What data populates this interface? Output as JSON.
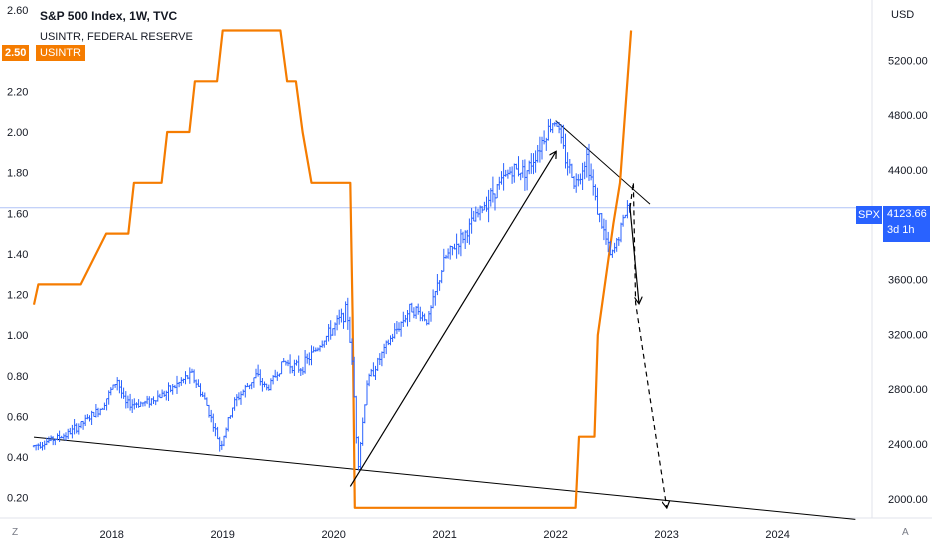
{
  "header": {
    "title": "S&P 500 Index, 1W, TVC",
    "subtitle": "USINTR, FEDERAL RESERVE",
    "usintr_tag_value": "2.50",
    "usintr_tag_name": "USINTR",
    "currency": "USD",
    "spx_symbol": "SPX",
    "spx_price": "4123.66",
    "spx_countdown": "3d 1h",
    "corner_left": "Z",
    "corner_right": "A"
  },
  "colors": {
    "spx": "#2962ff",
    "usintr": "#f57c00",
    "price_line": "#b0c4f7",
    "annotation": "#000000",
    "axis_text": "#131722"
  },
  "chart_data": {
    "type": "line",
    "title": "S&P 500 Index, 1W, TVC",
    "x_ticks": [
      "2018",
      "2019",
      "2020",
      "2021",
      "2022",
      "2023",
      "2024"
    ],
    "x_range": [
      2017.3,
      2024.85
    ],
    "left_axis": {
      "series": "USINTR",
      "ticks": [
        "0.20",
        "0.40",
        "0.60",
        "0.80",
        "1.00",
        "1.20",
        "1.40",
        "1.60",
        "1.80",
        "2.00",
        "2.20",
        "2.40",
        "2.60"
      ],
      "range": [
        0.1,
        2.65
      ]
    },
    "right_axis": {
      "series": "SPX",
      "ticks": [
        "2000.00",
        "2400.00",
        "2800.00",
        "3200.00",
        "3600.00",
        "4000.00",
        "4400.00",
        "4800.00",
        "5200.00"
      ],
      "range": [
        1860,
        5640
      ]
    },
    "series": [
      {
        "name": "USINTR",
        "axis": "left",
        "points": [
          [
            2017.3,
            1.15
          ],
          [
            2017.34,
            1.25
          ],
          [
            2017.72,
            1.25
          ],
          [
            2017.95,
            1.5
          ],
          [
            2018.15,
            1.5
          ],
          [
            2018.2,
            1.75
          ],
          [
            2018.45,
            1.75
          ],
          [
            2018.5,
            2.0
          ],
          [
            2018.7,
            2.0
          ],
          [
            2018.75,
            2.25
          ],
          [
            2018.95,
            2.25
          ],
          [
            2019.0,
            2.5
          ],
          [
            2019.52,
            2.5
          ],
          [
            2019.58,
            2.25
          ],
          [
            2019.66,
            2.25
          ],
          [
            2019.72,
            2.0
          ],
          [
            2019.8,
            1.75
          ],
          [
            2020.15,
            1.75
          ],
          [
            2020.17,
            1.1
          ],
          [
            2020.19,
            0.15
          ],
          [
            2022.18,
            0.15
          ],
          [
            2022.21,
            0.5
          ],
          [
            2022.35,
            0.5
          ],
          [
            2022.38,
            1.0
          ],
          [
            2022.52,
            1.55
          ],
          [
            2022.58,
            1.75
          ],
          [
            2022.68,
            2.5
          ]
        ]
      },
      {
        "name": "SPX",
        "axis": "right",
        "points": [
          [
            2017.3,
            2385
          ],
          [
            2017.45,
            2430
          ],
          [
            2017.6,
            2470
          ],
          [
            2017.75,
            2560
          ],
          [
            2017.9,
            2660
          ],
          [
            2018.05,
            2870
          ],
          [
            2018.12,
            2690
          ],
          [
            2018.3,
            2700
          ],
          [
            2018.5,
            2780
          ],
          [
            2018.72,
            2910
          ],
          [
            2018.85,
            2700
          ],
          [
            2018.98,
            2380
          ],
          [
            2019.1,
            2700
          ],
          [
            2019.3,
            2900
          ],
          [
            2019.4,
            2800
          ],
          [
            2019.55,
            3000
          ],
          [
            2019.7,
            2950
          ],
          [
            2019.85,
            3100
          ],
          [
            2020.0,
            3250
          ],
          [
            2020.12,
            3380
          ],
          [
            2020.17,
            2950
          ],
          [
            2020.22,
            2240
          ],
          [
            2020.3,
            2850
          ],
          [
            2020.5,
            3150
          ],
          [
            2020.7,
            3400
          ],
          [
            2020.85,
            3300
          ],
          [
            2021.0,
            3750
          ],
          [
            2021.2,
            3950
          ],
          [
            2021.4,
            4200
          ],
          [
            2021.6,
            4400
          ],
          [
            2021.75,
            4400
          ],
          [
            2021.9,
            4650
          ],
          [
            2022.0,
            4780
          ],
          [
            2022.08,
            4500
          ],
          [
            2022.18,
            4300
          ],
          [
            2022.28,
            4500
          ],
          [
            2022.38,
            4100
          ],
          [
            2022.45,
            3900
          ],
          [
            2022.5,
            3750
          ],
          [
            2022.58,
            3950
          ],
          [
            2022.65,
            4150
          ],
          [
            2022.67,
            4123
          ]
        ]
      }
    ],
    "annotations": [
      {
        "type": "trendline",
        "from": [
          2017.3,
          2450
        ],
        "to": [
          2024.7,
          1850
        ]
      },
      {
        "type": "trendline",
        "from": [
          2022.0,
          4760
        ],
        "to": [
          2022.85,
          4150
        ]
      },
      {
        "type": "arrow",
        "style": "solid",
        "from": [
          2020.15,
          2090
        ],
        "to": [
          2022.0,
          4530
        ]
      },
      {
        "type": "arrow",
        "style": "solid",
        "from": [
          2022.67,
          4123
        ],
        "to": [
          2022.75,
          3430
        ]
      },
      {
        "type": "arrow",
        "style": "dashed",
        "from": [
          2022.67,
          4123
        ],
        "to": [
          2022.7,
          4310
        ],
        "via": [
          2022.72,
          3430
        ],
        "end": [
          2023.0,
          1940
        ]
      }
    ],
    "last_price": 4123.66,
    "grid": false,
    "legend": "top-left"
  }
}
